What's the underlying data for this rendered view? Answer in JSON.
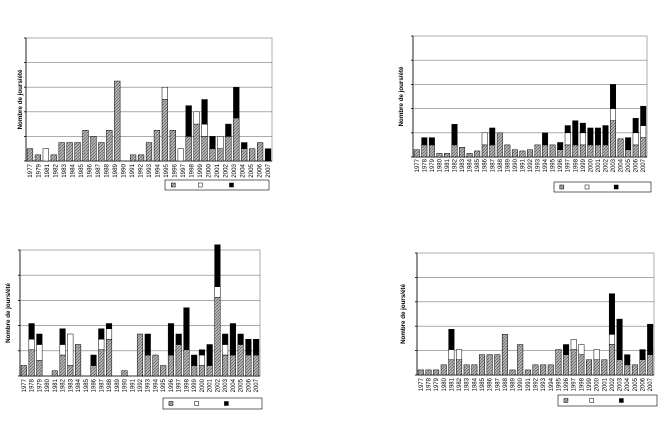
{
  "chart_data": [
    {
      "type": "bar",
      "stacked": true,
      "ylabel": "Nombre de jours/été",
      "xlabel": "",
      "grid": true,
      "legend_position": "bottom-right",
      "categories": [
        "1977",
        "1978",
        "1979",
        "1980",
        "1981",
        "1982",
        "1983",
        "1984",
        "1985",
        "1986",
        "1987",
        "1988",
        "1989",
        "1990",
        "1991",
        "1992",
        "1993",
        "1994",
        "1995",
        "1996",
        "1997",
        "1998",
        "1999",
        "2000",
        "2001",
        "2002",
        "2003",
        "2004",
        "2005",
        "2006",
        "2007"
      ],
      "tick_labels": [
        "1977",
        "1979",
        "1981",
        "1982",
        "1983",
        "1984",
        "1985",
        "1986",
        "1987",
        "1988",
        "1989",
        "1990",
        "1991",
        "1992",
        "1993",
        "1994",
        "1995",
        "1996",
        "1997",
        "1998",
        "1999",
        "2000",
        "2001",
        "2002",
        "2003",
        "2004",
        "2005",
        "2006",
        "2007"
      ],
      "ylim": [
        0,
        10
      ],
      "series": [
        {
          "values": [
            1,
            0.5,
            0,
            0.5,
            1.5,
            1.5,
            1.5,
            2.5,
            2,
            1.5,
            2.5,
            6.5,
            0,
            0.5,
            0.5,
            1.5,
            2.5,
            5,
            2.5,
            0,
            2,
            3,
            2,
            1,
            1,
            2,
            3.5,
            1,
            1,
            1.5,
            0
          ]
        },
        {
          "values": [
            0,
            0,
            1,
            0,
            0,
            0,
            0,
            0,
            0,
            0,
            0,
            0,
            0,
            0,
            0,
            0,
            0,
            1,
            0,
            1,
            0,
            1,
            1,
            0,
            1,
            0,
            0,
            0,
            0,
            0,
            0
          ]
        },
        {
          "values": [
            0,
            0,
            0,
            0,
            0,
            0,
            0,
            0,
            0,
            0,
            0,
            0,
            0,
            0,
            0,
            0,
            0,
            0,
            0,
            0,
            2.5,
            0,
            2,
            1,
            0,
            1,
            2.5,
            0.5,
            0,
            0,
            1
          ]
        }
      ]
    },
    {
      "type": "bar",
      "stacked": true,
      "ylabel": "Nombre de jours/été",
      "xlabel": "",
      "grid": true,
      "legend_position": "bottom-right",
      "categories": [
        "1977",
        "1978",
        "1979",
        "1980",
        "1981",
        "1982",
        "1983",
        "1984",
        "1985",
        "1986",
        "1987",
        "1988",
        "1989",
        "1990",
        "1991",
        "1992",
        "1993",
        "1994",
        "1995",
        "1996",
        "1997",
        "1998",
        "1999",
        "2000",
        "2001",
        "2002",
        "2003",
        "2004",
        "2005",
        "2006",
        "2007"
      ],
      "tick_labels": [
        "1977",
        "1978",
        "1979",
        "1980",
        "1981",
        "1982",
        "1983",
        "1984",
        "1985",
        "1986",
        "1987",
        "1988",
        "1989",
        "1990",
        "1991",
        "1992",
        "1993",
        "1994",
        "1995",
        "1996",
        "1997",
        "1998",
        "1999",
        "2000",
        "2001",
        "2002",
        "2003",
        "2004",
        "2005",
        "2006",
        "2007"
      ],
      "ylim": [
        0,
        10
      ],
      "series": [
        {
          "values": [
            0.6,
            1,
            1,
            0.3,
            0.3,
            1,
            0.8,
            0.3,
            0.5,
            1,
            1,
            2,
            1,
            0.6,
            0.5,
            0.6,
            1,
            1,
            1,
            0.6,
            1,
            1,
            1,
            1,
            1,
            1,
            3,
            1.5,
            0.6,
            1,
            1.6
          ]
        },
        {
          "values": [
            0,
            0,
            0,
            0,
            0,
            0,
            0,
            0,
            0,
            1,
            0,
            0,
            0,
            0,
            0,
            0,
            0,
            0,
            0,
            0,
            1,
            0,
            1,
            0,
            0,
            0,
            1,
            0,
            0,
            1,
            1
          ]
        },
        {
          "values": [
            0,
            0.6,
            0.6,
            0,
            0,
            1.7,
            0,
            0,
            0,
            0,
            1.4,
            0,
            0,
            0,
            0,
            0,
            0,
            1,
            0,
            0.6,
            0.6,
            2,
            0.8,
            1.4,
            1.4,
            1.6,
            2,
            0,
            1,
            1.2,
            1.6
          ]
        }
      ]
    },
    {
      "type": "bar",
      "stacked": true,
      "ylabel": "Nombre de jours/été",
      "xlabel": "",
      "grid": true,
      "legend_position": "bottom-right",
      "categories": [
        "1977",
        "1978",
        "1979",
        "1980",
        "1981",
        "1982",
        "1983",
        "1984",
        "1985",
        "1986",
        "1987",
        "1988",
        "1989",
        "1990",
        "1991",
        "1992",
        "1993",
        "1994",
        "1995",
        "1996",
        "1997",
        "1998",
        "1999",
        "2000",
        "2001",
        "2002",
        "2003",
        "2004",
        "2005",
        "2006",
        "2007"
      ],
      "tick_labels": [
        "1977",
        "1978",
        "1979",
        "1980",
        "1981",
        "1982",
        "1983",
        "1984",
        "1985",
        "1986",
        "1987",
        "1988",
        "1989",
        "1990",
        "1991",
        "1992",
        "1993",
        "1994",
        "1995",
        "1996",
        "1997",
        "1998",
        "1999",
        "2000",
        "2001",
        "2002",
        "2003",
        "2004",
        "2005",
        "2006",
        "2007"
      ],
      "ylim": [
        0,
        12
      ],
      "series": [
        {
          "values": [
            1,
            2.5,
            1.5,
            0,
            0.5,
            2,
            1,
            3,
            0,
            1,
            2.5,
            3.5,
            0,
            0.5,
            0,
            4,
            2,
            2,
            1,
            2,
            3,
            2.5,
            1,
            1,
            1,
            7.5,
            2,
            2,
            3,
            2,
            2
          ]
        },
        {
          "values": [
            0,
            1,
            1.5,
            0,
            0,
            1,
            3,
            0,
            0,
            0,
            1,
            1,
            0,
            0,
            0,
            0,
            0,
            0,
            0,
            0,
            0,
            0,
            0,
            1,
            0,
            1,
            1,
            0,
            0,
            0,
            0
          ]
        },
        {
          "values": [
            0,
            1.5,
            1,
            0,
            0,
            1.5,
            0,
            0,
            0,
            1,
            1,
            0.5,
            0,
            0,
            0,
            0,
            2,
            0,
            0,
            3,
            1,
            4,
            1,
            0.5,
            2,
            4,
            1,
            3,
            1,
            1.5,
            1.5
          ]
        }
      ]
    },
    {
      "type": "bar",
      "stacked": true,
      "ylabel": "Nombre de jours/été",
      "xlabel": "",
      "grid": true,
      "legend_position": "bottom-right",
      "categories": [
        "1977",
        "1978",
        "1979",
        "1980",
        "1981",
        "1982",
        "1983",
        "1984",
        "1985",
        "1986",
        "1987",
        "1988",
        "1989",
        "1990",
        "1991",
        "1992",
        "1993",
        "1994",
        "1995",
        "1996",
        "1997",
        "1998",
        "1999",
        "2000",
        "2001",
        "2002",
        "2003",
        "2004",
        "2005",
        "2006",
        "2007"
      ],
      "tick_labels": [
        "1977",
        "1978",
        "1979",
        "1980",
        "1981",
        "1982",
        "1983",
        "1984",
        "1985",
        "1986",
        "1987",
        "1988",
        "1989",
        "1990",
        "1991",
        "1992",
        "1993",
        "1994",
        "1995",
        "1996",
        "1997",
        "1998",
        "1999",
        "2000",
        "2001",
        "2002",
        "2003",
        "2004",
        "2005",
        "2006",
        "2007"
      ],
      "ylim": [
        0,
        12
      ],
      "series": [
        {
          "values": [
            0.5,
            0.5,
            0.5,
            1,
            1.5,
            1.5,
            1,
            1,
            2,
            2,
            2,
            4,
            0.5,
            3,
            0.5,
            1,
            1,
            1,
            2.5,
            2,
            2.5,
            2,
            1.5,
            1.5,
            1.5,
            3,
            1.5,
            1,
            1,
            1.5,
            2
          ]
        },
        {
          "values": [
            0,
            0,
            0,
            0,
            1,
            1,
            0,
            0,
            0,
            0,
            0,
            0,
            0,
            0,
            0,
            0,
            0,
            0,
            0,
            0,
            1,
            1,
            0,
            1,
            0,
            1,
            0,
            0,
            0,
            0,
            0
          ]
        },
        {
          "values": [
            0,
            0,
            0,
            0,
            2,
            0,
            0,
            0,
            0,
            0,
            0,
            0,
            0,
            0,
            0,
            0,
            0,
            0,
            0,
            1,
            0,
            0,
            0,
            0,
            0,
            4,
            4,
            1,
            0,
            1,
            3
          ]
        }
      ]
    }
  ]
}
